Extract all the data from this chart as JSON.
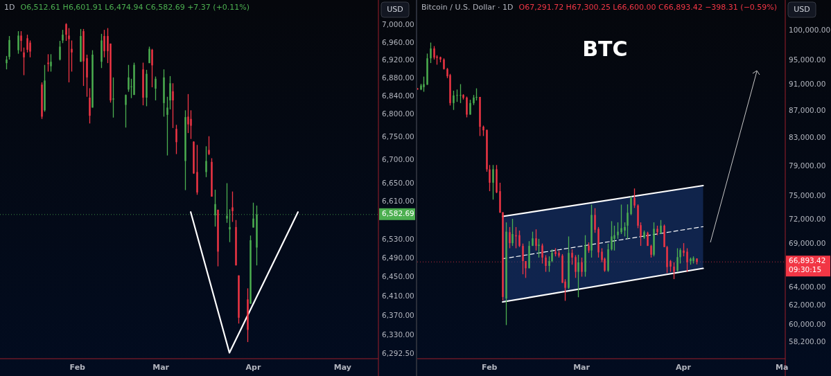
{
  "chart_data": [
    {
      "type": "candlestick",
      "title": "1D",
      "subtitle": "O6,512.61  H6,601.91  L6,474.94  C6,582.69  +7.37 (+0.11%)",
      "ylabel": "USD",
      "log": true,
      "x": [
        "--01-08",
        "--01-09",
        "--01-12",
        "--01-13",
        "--01-14",
        "--01-15",
        "--01-16",
        "--01-20",
        "--01-21",
        "--01-22",
        "--01-23",
        "--01-26",
        "--01-27",
        "--01-28",
        "--01-29",
        "--01-30",
        "--02-02",
        "--02-03",
        "--02-04",
        "--02-05",
        "--02-06",
        "--02-09",
        "--02-10",
        "--02-11",
        "--02-12",
        "--02-13",
        "--02-17",
        "--02-18",
        "--02-19",
        "--02-20",
        "--02-23",
        "--02-24",
        "--02-25",
        "--02-26",
        "--02-27",
        "--03-02",
        "--03-03",
        "--03-04",
        "--03-05",
        "--03-06",
        "--03-09",
        "--03-10",
        "--03-11",
        "--03-12",
        "--03-13",
        "--03-16",
        "--03-17",
        "--03-18",
        "--03-19",
        "--03-20",
        "--03-23",
        "--03-24",
        "--03-25",
        "--03-26",
        "--03-27",
        "--03-30",
        "--03-31",
        "--04-01",
        "--04-02"
      ],
      "ohlc": [
        [
          6914,
          6930,
          6900,
          6922
        ],
        [
          6928,
          6975,
          6922,
          6966
        ],
        [
          6943,
          6986,
          6935,
          6976
        ],
        [
          6976,
          6986,
          6940,
          6964
        ],
        [
          6938,
          6949,
          6887,
          6927
        ],
        [
          6970,
          6978,
          6938,
          6944
        ],
        [
          6960,
          6965,
          6927,
          6940
        ],
        [
          6866,
          6871,
          6790,
          6795
        ],
        [
          6809,
          6910,
          6806,
          6875
        ],
        [
          6915,
          6934,
          6895,
          6912
        ],
        [
          6907,
          6934,
          6895,
          6917
        ],
        [
          6922,
          6964,
          6920,
          6951
        ],
        [
          6965,
          6989,
          6959,
          6978
        ],
        [
          7002,
          7004,
          6964,
          6978
        ],
        [
          6976,
          6993,
          6871,
          6968
        ],
        [
          6946,
          6965,
          6895,
          6938
        ],
        [
          6917,
          6991,
          6917,
          6975
        ],
        [
          6986,
          6991,
          6863,
          6918
        ],
        [
          6925,
          6933,
          6839,
          6882
        ],
        [
          6837,
          6858,
          6780,
          6797
        ],
        [
          6815,
          6943,
          6815,
          6933
        ],
        [
          6917,
          6980,
          6903,
          6965
        ],
        [
          6975,
          6989,
          6927,
          6941
        ],
        [
          6975,
          6993,
          6914,
          6941
        ],
        [
          6958,
          6958,
          6826,
          6831
        ],
        [
          6833,
          6882,
          6793,
          6835
        ],
        [
          6821,
          6844,
          6771,
          6843
        ],
        [
          6855,
          6910,
          6850,
          6882
        ],
        [
          6861,
          6879,
          6836,
          6862
        ],
        [
          6843,
          6915,
          6843,
          6910
        ],
        [
          6900,
          6915,
          6820,
          6837
        ],
        [
          6837,
          6899,
          6818,
          6890
        ],
        [
          6914,
          6951,
          6914,
          6946
        ],
        [
          6944,
          6946,
          6860,
          6909
        ],
        [
          6857,
          6884,
          6831,
          6879
        ],
        [
          6825,
          6900,
          6795,
          6882
        ],
        [
          6799,
          6839,
          6710,
          6815
        ],
        [
          6831,
          6885,
          6811,
          6869
        ],
        [
          6851,
          6869,
          6770,
          6831
        ],
        [
          6768,
          6777,
          6713,
          6739
        ],
        [
          6698,
          6809,
          6635,
          6794
        ],
        [
          6795,
          6845,
          6759,
          6778
        ],
        [
          6790,
          6809,
          6746,
          6775
        ],
        [
          6740,
          6741,
          6670,
          6671
        ],
        [
          6674,
          6733,
          6625,
          6630
        ],
        [
          6674,
          6730,
          6663,
          6698
        ],
        [
          6722,
          6752,
          6711,
          6713
        ],
        [
          6696,
          6704,
          6621,
          6621
        ],
        [
          6581,
          6636,
          6557,
          6605
        ],
        [
          6593,
          6593,
          6473,
          6504
        ],
        [
          6574,
          6650,
          6565,
          6580
        ],
        [
          6551,
          6594,
          6524,
          6556
        ],
        [
          6598,
          6632,
          6567,
          6590
        ],
        [
          6556,
          6571,
          6475,
          6475
        ],
        [
          6454,
          6454,
          6354,
          6366
        ],
        [
          6404,
          6427,
          6316,
          6341
        ],
        [
          6395,
          6538,
          6395,
          6528
        ],
        [
          6555,
          6608,
          6555,
          6574
        ],
        [
          6512.61,
          6601.91,
          6474.94,
          6582.69
        ]
      ],
      "xlim": [
        "--01-06",
        "--05-13"
      ],
      "xticks": [
        {
          "value": "--02-01",
          "label": "Feb"
        },
        {
          "value": "--03-01",
          "label": "Mar"
        },
        {
          "value": "--04-01",
          "label": "Apr"
        },
        {
          "value": "--05-01",
          "label": "May"
        }
      ],
      "ylim": [
        6282,
        7057
      ],
      "yticks": [
        {
          "value": 7000,
          "label": "7,000.00"
        },
        {
          "value": 6960,
          "label": "6,960.00"
        },
        {
          "value": 6920,
          "label": "6,920.00"
        },
        {
          "value": 6880,
          "label": "6,880.00"
        },
        {
          "value": 6840,
          "label": "6,840.00"
        },
        {
          "value": 6800,
          "label": "6,800.00"
        },
        {
          "value": 6750,
          "label": "6,750.00"
        },
        {
          "value": 6700,
          "label": "6,700.00"
        },
        {
          "value": 6650,
          "label": "6,650.00"
        },
        {
          "value": 6610,
          "label": "6,610.00"
        },
        {
          "value": 6530,
          "label": "6,530.00"
        },
        {
          "value": 6490,
          "label": "6,490.00"
        },
        {
          "value": 6450,
          "label": "6,450.00"
        },
        {
          "value": 6410,
          "label": "6,410.00"
        },
        {
          "value": 6370,
          "label": "6,370.00"
        },
        {
          "value": 6330,
          "label": "6,330.00"
        },
        {
          "value": 6292.5,
          "label": "6,292.50"
        }
      ],
      "series": [
        {
          "type": "line",
          "color": "#ffffff",
          "x": [
            "--03-11",
            "--03-24",
            "--04-16"
          ],
          "values": [
            6588,
            6294,
            6588
          ]
        }
      ],
      "ref_lines": [
        {
          "axis": "y",
          "value": 6582.69,
          "label": "6,582.69",
          "color": "#4caf50",
          "line_style": "dotted"
        }
      ]
    },
    {
      "type": "candlestick",
      "title": "Bitcoin / U.S. Dollar · 1D",
      "subtitle": "O67,291.72  H67,300.25  L66,600.00  C66,893.42  −398.31 (−0.59%)",
      "ylabel": "USD",
      "log": true,
      "annotations": [
        "BTC"
      ],
      "x": [
        "--01-10",
        "--01-11",
        "--01-12",
        "--01-13",
        "--01-14",
        "--01-15",
        "--01-16",
        "--01-17",
        "--01-18",
        "--01-19",
        "--01-20",
        "--01-21",
        "--01-22",
        "--01-23",
        "--01-24",
        "--01-25",
        "--01-26",
        "--01-27",
        "--01-28",
        "--01-29",
        "--01-30",
        "--01-31",
        "--02-01",
        "--02-02",
        "--02-03",
        "--02-04",
        "--02-05",
        "--02-06",
        "--02-07",
        "--02-08",
        "--02-09",
        "--02-10",
        "--02-11",
        "--02-12",
        "--02-13",
        "--02-14",
        "--02-15",
        "--02-16",
        "--02-17",
        "--02-18",
        "--02-19",
        "--02-20",
        "--02-21",
        "--02-22",
        "--02-23",
        "--02-24",
        "--02-25",
        "--02-26",
        "--02-27",
        "--02-28",
        "--03-01",
        "--03-02",
        "--03-03",
        "--03-04",
        "--03-05",
        "--03-06",
        "--03-07",
        "--03-08",
        "--03-09",
        "--03-10",
        "--03-11",
        "--03-12",
        "--03-13",
        "--03-14",
        "--03-15",
        "--03-16",
        "--03-17",
        "--03-18",
        "--03-19",
        "--03-20",
        "--03-21",
        "--03-22",
        "--03-23",
        "--03-24",
        "--03-25",
        "--03-26",
        "--03-27",
        "--03-28",
        "--03-29",
        "--03-30",
        "--03-31",
        "--04-01",
        "--04-02",
        "--04-03",
        "--04-04",
        "--04-05"
      ],
      "ohlc": [
        [
          90400,
          90500,
          90200,
          90300
        ],
        [
          90260,
          91150,
          90150,
          90890
        ],
        [
          90630,
          92300,
          89900,
          91100
        ],
        [
          91000,
          96070,
          91000,
          95280
        ],
        [
          95280,
          97920,
          94500,
          96920
        ],
        [
          96920,
          97320,
          95080,
          95400
        ],
        [
          95560,
          95800,
          94230,
          95360
        ],
        [
          95480,
          95560,
          94620,
          95080
        ],
        [
          95080,
          95280,
          93440,
          93520
        ],
        [
          93520,
          93700,
          92050,
          92350
        ],
        [
          92550,
          92740,
          87780,
          88150
        ],
        [
          88150,
          90070,
          87110,
          89330
        ],
        [
          89300,
          90250,
          88330,
          89400
        ],
        [
          89330,
          91100,
          88150,
          89400
        ],
        [
          89400,
          89520,
          88700,
          88960
        ],
        [
          89000,
          89150,
          85990,
          86400
        ],
        [
          86400,
          88660,
          86400,
          88150
        ],
        [
          88150,
          89400,
          87850,
          89000
        ],
        [
          89000,
          90440,
          88550,
          89100
        ],
        [
          89100,
          89100,
          83250,
          84600
        ],
        [
          84600,
          84770,
          83250,
          84080
        ],
        [
          84150,
          84150,
          78240,
          78560
        ],
        [
          78560,
          79160,
          75640,
          76760
        ],
        [
          76760,
          79160,
          74540,
          78580
        ],
        [
          78580,
          79160,
          75380,
          75480
        ],
        [
          75640,
          76760,
          72860,
          72860
        ],
        [
          72920,
          72920,
          62550,
          62940
        ],
        [
          62780,
          71650,
          59940,
          70500
        ],
        [
          70440,
          71070,
          68500,
          69110
        ],
        [
          69110,
          72090,
          68780,
          70210
        ],
        [
          70070,
          71070,
          68500,
          69930
        ],
        [
          70070,
          70640,
          68640,
          68780
        ],
        [
          68780,
          69060,
          65470,
          66990
        ],
        [
          66990,
          66990,
          65060,
          66160
        ],
        [
          66160,
          69350,
          66160,
          68780
        ],
        [
          68780,
          70500,
          68780,
          69690
        ],
        [
          69690,
          70790,
          68230,
          68780
        ],
        [
          68780,
          69630,
          67400,
          68920
        ],
        [
          68830,
          69060,
          66710,
          67400
        ],
        [
          67400,
          67680,
          65750,
          66430
        ],
        [
          66430,
          67540,
          65750,
          66990
        ],
        [
          66990,
          68370,
          66850,
          67950
        ],
        [
          68090,
          68500,
          67540,
          67810
        ],
        [
          67950,
          68230,
          67400,
          67620
        ],
        [
          67620,
          67810,
          64500,
          64500
        ],
        [
          64640,
          64910,
          62520,
          63950
        ],
        [
          63950,
          69920,
          63820,
          67950
        ],
        [
          67950,
          68370,
          66570,
          67400
        ],
        [
          67450,
          67680,
          65060,
          65750
        ],
        [
          65750,
          67730,
          62910,
          66850
        ],
        [
          66850,
          67400,
          65200,
          65750
        ],
        [
          65750,
          70070,
          65200,
          68830
        ],
        [
          68830,
          69200,
          67950,
          68230
        ],
        [
          68230,
          73900,
          67400,
          72580
        ],
        [
          72580,
          73440,
          70360,
          70730
        ],
        [
          70850,
          71070,
          67400,
          68010
        ],
        [
          68090,
          68500,
          66850,
          67120
        ],
        [
          67260,
          67400,
          65750,
          65890
        ],
        [
          65890,
          69060,
          65750,
          68370
        ],
        [
          68370,
          71800,
          68230,
          69920
        ],
        [
          69630,
          71240,
          68230,
          70070
        ],
        [
          70070,
          71650,
          69630,
          70500
        ],
        [
          70440,
          73900,
          70210,
          70930
        ],
        [
          70640,
          71650,
          69920,
          71070
        ],
        [
          71240,
          73930,
          69630,
          72860
        ],
        [
          72700,
          75000,
          72550,
          74760
        ],
        [
          74760,
          76000,
          73470,
          73780
        ],
        [
          73780,
          73930,
          70930,
          71240
        ],
        [
          71300,
          71650,
          68780,
          69920
        ],
        [
          69780,
          70640,
          69630,
          70440
        ],
        [
          70360,
          70500,
          68780,
          68780
        ],
        [
          68780,
          68920,
          67400,
          67730
        ],
        [
          67730,
          71650,
          67540,
          70850
        ],
        [
          70850,
          71240,
          70070,
          70440
        ],
        [
          70360,
          71940,
          70210,
          71240
        ],
        [
          71240,
          71380,
          68640,
          68640
        ],
        [
          68640,
          68780,
          65610,
          66300
        ],
        [
          66990,
          67120,
          65750,
          66350
        ],
        [
          66350,
          66850,
          64920,
          65750
        ],
        [
          65890,
          68500,
          65750,
          67450
        ],
        [
          67450,
          68500,
          66710,
          68280
        ],
        [
          68230,
          69110,
          67540,
          67950
        ],
        [
          68090,
          68500,
          65750,
          66850
        ],
        [
          66990,
          67400,
          66570,
          67260
        ],
        [
          66990,
          67540,
          66710,
          67350
        ],
        [
          67291.72,
          67300.25,
          66600.0,
          66893.42
        ]
      ],
      "xlim": [
        "--01-10",
        "--05-02"
      ],
      "xticks": [
        {
          "value": "--02-01",
          "label": "Feb"
        },
        {
          "value": "--03-01",
          "label": "Mar"
        },
        {
          "value": "--04-01",
          "label": "Apr"
        },
        {
          "value": "--05-01",
          "label": "Ma"
        }
      ],
      "ylim": [
        56540,
        105440
      ],
      "yticks": [
        {
          "value": 100000,
          "label": "100,000.00"
        },
        {
          "value": 95000,
          "label": "95,000.00"
        },
        {
          "value": 91000,
          "label": "91,000.00"
        },
        {
          "value": 87000,
          "label": "87,000.00"
        },
        {
          "value": 83000,
          "label": "83,000.00"
        },
        {
          "value": 79000,
          "label": "79,000.00"
        },
        {
          "value": 75000,
          "label": "75,000.00"
        },
        {
          "value": 72000,
          "label": "72,000.00"
        },
        {
          "value": 69000,
          "label": "69,000.00"
        },
        {
          "value": 64000,
          "label": "64,000.00"
        },
        {
          "value": 62000,
          "label": "62,000.00"
        },
        {
          "value": 60000,
          "label": "60,000.00"
        },
        {
          "value": 58200,
          "label": "58,200.00"
        }
      ],
      "series": [
        {
          "type": "line",
          "color": "#ffffff",
          "line_style": "dashed",
          "x": [
            "--02-05",
            "--04-07"
          ],
          "values": [
            67260,
            71120
          ],
          "lower": [
            62400,
            66150
          ],
          "upper": [
            72400,
            76380
          ]
        },
        {
          "type": "line",
          "color": "#ffffff",
          "x": [
            "--02-05",
            "--04-07"
          ],
          "values": [
            72400,
            76380
          ]
        },
        {
          "type": "line",
          "color": "#ffffff",
          "x": [
            "--02-05",
            "--04-07"
          ],
          "values": [
            62400,
            66150
          ]
        }
      ],
      "ref_lines": [
        {
          "axis": "y",
          "value": 66893.42,
          "label": "66,893.42\n09:30:15",
          "color": "#f23645",
          "line_style": "dotted"
        }
      ]
    }
  ]
}
